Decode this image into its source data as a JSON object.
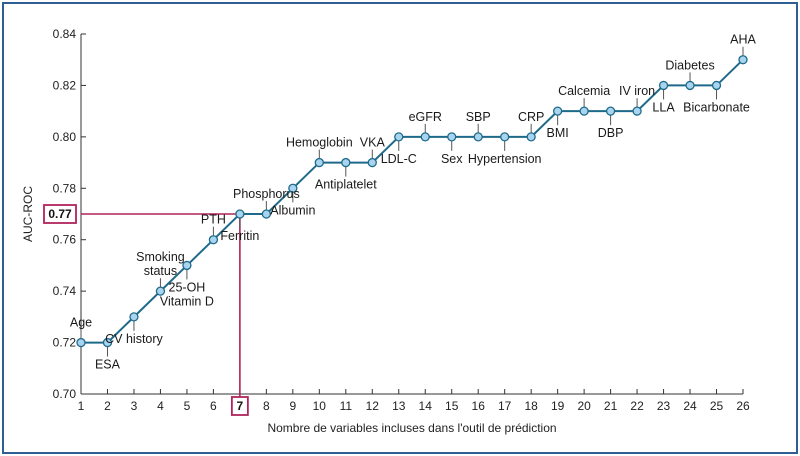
{
  "chart_data": {
    "type": "line",
    "xlabel": "Nombre de variables incluses dans l'outil de prédiction",
    "ylabel": "AUC-ROC",
    "xlim": [
      1,
      26
    ],
    "ylim": [
      0.7,
      0.84
    ],
    "x_ticks": [
      1,
      2,
      3,
      4,
      5,
      6,
      7,
      8,
      9,
      10,
      11,
      12,
      13,
      14,
      15,
      16,
      17,
      18,
      19,
      20,
      21,
      22,
      23,
      24,
      25,
      26
    ],
    "y_ticks": [
      "0.70",
      "0.72",
      "0.74",
      "0.76",
      "0.78",
      "0.80",
      "0.82",
      "0.84"
    ],
    "series": [
      {
        "x": [
          1,
          2,
          3,
          4,
          5,
          6,
          7,
          8,
          9,
          10,
          11,
          12,
          13,
          14,
          15,
          16,
          17,
          18,
          19,
          20,
          21,
          22,
          23,
          24,
          25,
          26
        ],
        "values": [
          0.72,
          0.72,
          0.73,
          0.74,
          0.75,
          0.76,
          0.77,
          0.77,
          0.78,
          0.79,
          0.79,
          0.79,
          0.8,
          0.8,
          0.8,
          0.8,
          0.8,
          0.8,
          0.81,
          0.81,
          0.81,
          0.81,
          0.82,
          0.82,
          0.82,
          0.83
        ]
      }
    ],
    "annotations": [
      {
        "x": 1,
        "lines": [
          "Age"
        ],
        "side": "above"
      },
      {
        "x": 2,
        "lines": [
          "ESA"
        ],
        "side": "below"
      },
      {
        "x": 3,
        "lines": [
          "CV history"
        ],
        "side": "below"
      },
      {
        "x": 4,
        "lines": [
          "Smoking",
          "status"
        ],
        "side": "above"
      },
      {
        "x": 5,
        "lines": [
          "25-OH",
          "Vitamin D"
        ],
        "side": "below"
      },
      {
        "x": 6,
        "lines": [
          "PTH"
        ],
        "side": "above"
      },
      {
        "x": 7,
        "lines": [
          "Ferritin"
        ],
        "side": "below"
      },
      {
        "x": 8,
        "lines": [
          "Phosphorus"
        ],
        "side": "above"
      },
      {
        "x": 9,
        "lines": [
          "Albumin"
        ],
        "side": "below"
      },
      {
        "x": 10,
        "lines": [
          "Hemoglobin"
        ],
        "side": "above"
      },
      {
        "x": 11,
        "lines": [
          "Antiplatelet"
        ],
        "side": "below"
      },
      {
        "x": 12,
        "lines": [
          "VKA"
        ],
        "side": "above"
      },
      {
        "x": 13,
        "lines": [
          "LDL-C"
        ],
        "side": "below"
      },
      {
        "x": 14,
        "lines": [
          "eGFR"
        ],
        "side": "above"
      },
      {
        "x": 15,
        "lines": [
          "Sex"
        ],
        "side": "below"
      },
      {
        "x": 16,
        "lines": [
          "SBP"
        ],
        "side": "above"
      },
      {
        "x": 17,
        "lines": [
          "Hypertension"
        ],
        "side": "below"
      },
      {
        "x": 18,
        "lines": [
          "CRP"
        ],
        "side": "above"
      },
      {
        "x": 19,
        "lines": [
          "BMI"
        ],
        "side": "below"
      },
      {
        "x": 20,
        "lines": [
          "Calcemia"
        ],
        "side": "above"
      },
      {
        "x": 21,
        "lines": [
          "DBP"
        ],
        "side": "below"
      },
      {
        "x": 22,
        "lines": [
          "IV iron"
        ],
        "side": "above"
      },
      {
        "x": 23,
        "lines": [
          "LLA"
        ],
        "side": "below"
      },
      {
        "x": 24,
        "lines": [
          "Diabetes"
        ],
        "side": "above"
      },
      {
        "x": 25,
        "lines": [
          "Bicarbonate"
        ],
        "side": "below"
      },
      {
        "x": 26,
        "lines": [
          "AHA"
        ],
        "side": "above"
      }
    ],
    "highlight": {
      "x": 7,
      "y": 0.77,
      "x_label": "7",
      "y_label": "0.77",
      "color": "#b0245c"
    },
    "colors": {
      "line": "#1f6a8a",
      "marker_fill": "#a9d4ef",
      "marker_stroke": "#1f6a8a",
      "frame": "#2f5e95",
      "axis": "#333333"
    }
  }
}
